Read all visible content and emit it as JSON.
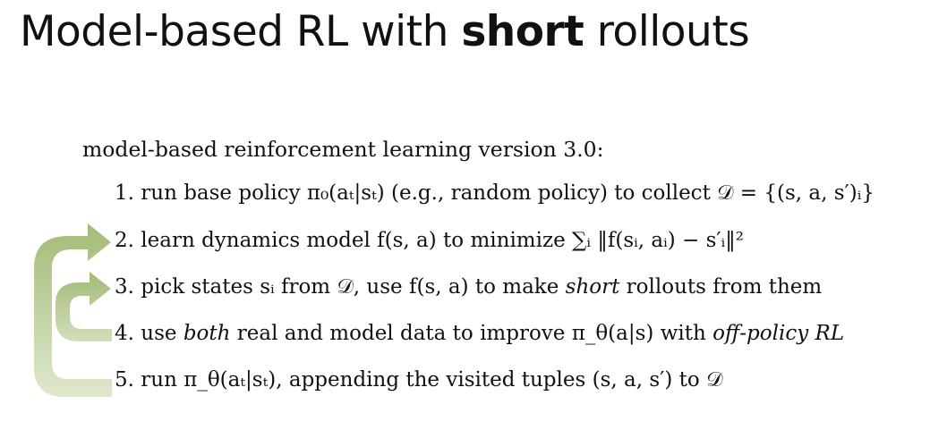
{
  "slide": {
    "title_prefix": "Model-based RL with ",
    "title_bold": "short",
    "title_suffix": " rollouts",
    "heading": "model-based reinforcement learning version 3.0:",
    "steps": [
      {
        "number": "1.",
        "parts": [
          "run base policy ",
          "π₀(aₜ|sₜ)",
          " (e.g., random policy) to collect ",
          "𝒟 = {(s, a, s′)ᵢ}"
        ]
      },
      {
        "number": "2.",
        "parts": [
          "learn dynamics model ",
          "f(s, a)",
          " to minimize ",
          "∑ᵢ ‖f(sᵢ, aᵢ) − s′ᵢ‖²"
        ]
      },
      {
        "number": "3.",
        "parts": [
          "pick states ",
          "sᵢ",
          " from ",
          "𝒟",
          ", use ",
          "f(s, a)",
          " to make ",
          "short",
          " rollouts from them"
        ]
      },
      {
        "number": "4.",
        "parts": [
          "use ",
          "both",
          " real and model data to improve ",
          "π_θ(a|s)",
          " with ",
          "off-policy RL"
        ]
      },
      {
        "number": "5.",
        "parts": [
          "run ",
          "π_θ(aₜ|sₜ)",
          ", appending the visited tuples ",
          "(s, a, s′)",
          " to ",
          "𝒟"
        ]
      }
    ],
    "arrow_color": "#a9c07f"
  }
}
